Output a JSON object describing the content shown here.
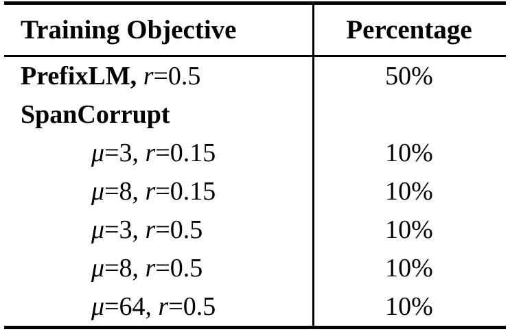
{
  "page": {
    "background": "#ffffff",
    "text_color": "#000000",
    "rule_color": "#000000"
  },
  "table": {
    "header": {
      "objective": "Training Objective",
      "percentage": "Percentage"
    },
    "rows": [
      {
        "bold": "PrefixLM,",
        "var1": "",
        "mid": " ",
        "var2": "r",
        "tail": "=0.5",
        "percentage": "50%"
      },
      {
        "bold": "SpanCorrupt",
        "var1": "",
        "mid": "",
        "var2": "",
        "tail": "",
        "percentage": ""
      },
      {
        "bold": "",
        "var1": "μ",
        "mid": "=3, ",
        "var2": "r",
        "tail": "=0.15",
        "percentage": "10%"
      },
      {
        "bold": "",
        "var1": "μ",
        "mid": "=8, ",
        "var2": "r",
        "tail": "=0.15",
        "percentage": "10%"
      },
      {
        "bold": "",
        "var1": "μ",
        "mid": "=3, ",
        "var2": "r",
        "tail": "=0.5",
        "percentage": "10%"
      },
      {
        "bold": "",
        "var1": "μ",
        "mid": "=8, ",
        "var2": "r",
        "tail": "=0.5",
        "percentage": "10%"
      },
      {
        "bold": "",
        "var1": "μ",
        "mid": "=64, ",
        "var2": "r",
        "tail": "=0.5",
        "percentage": "10%"
      }
    ]
  }
}
